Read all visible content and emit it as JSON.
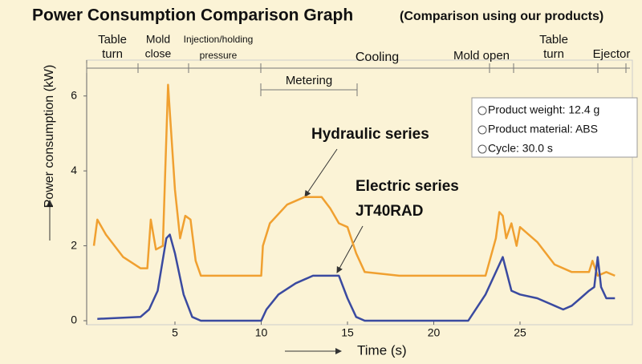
{
  "chart_data": {
    "type": "line",
    "title": "Power Consumption Comparison Graph",
    "subtitle": "(Comparison using our products)",
    "x_label": "Time (s)",
    "y_label": "Power consumption (kW)",
    "xlim": [
      0,
      31
    ],
    "ylim": [
      0,
      7
    ],
    "xticks": [
      5,
      10,
      15,
      20,
      25
    ],
    "yticks": [
      0,
      2,
      4,
      6
    ],
    "phases": [
      {
        "lines": [
          "Table",
          "turn"
        ]
      },
      {
        "lines": [
          "Mold",
          "close"
        ]
      },
      {
        "lines": [
          "Injection/holding",
          "pressure"
        ]
      },
      {
        "lines": [
          "Cooling"
        ]
      },
      {
        "lines": [
          "Metering"
        ]
      },
      {
        "lines": [
          "Mold open"
        ]
      },
      {
        "lines": [
          "Table",
          "turn"
        ]
      },
      {
        "lines": [
          "Ejector"
        ]
      }
    ],
    "info": [
      "Product weight: 12.4 g",
      "Product material: ABS",
      "Cycle: 30.0 s"
    ],
    "series": [
      {
        "name": "Hydraulic series",
        "color": "#f0a030",
        "x": [
          0.3,
          0.5,
          1,
          2,
          3,
          3.4,
          3.6,
          3.9,
          4.3,
          4.6,
          5,
          5.3,
          5.6,
          5.9,
          6.2,
          6.5,
          10,
          10.1,
          10.5,
          11.5,
          12.5,
          13.5,
          14,
          14.5,
          15,
          15.5,
          16,
          18,
          22,
          23,
          23.6,
          23.8,
          24,
          24.2,
          24.5,
          24.8,
          25,
          26,
          27,
          28,
          29,
          29.2,
          29.5,
          30,
          30.5
        ],
        "values": [
          2.0,
          2.7,
          2.3,
          1.7,
          1.4,
          1.4,
          2.7,
          1.9,
          2.0,
          6.3,
          3.5,
          2.2,
          2.8,
          2.7,
          1.6,
          1.2,
          1.2,
          2.0,
          2.6,
          3.1,
          3.3,
          3.3,
          3.0,
          2.6,
          2.5,
          1.8,
          1.3,
          1.2,
          1.2,
          1.2,
          2.2,
          2.9,
          2.8,
          2.2,
          2.6,
          2.0,
          2.5,
          2.1,
          1.5,
          1.3,
          1.3,
          1.6,
          1.2,
          1.3,
          1.2
        ]
      },
      {
        "name": "Electric series",
        "color": "#3a4aa0",
        "x": [
          0.5,
          3,
          3.5,
          4,
          4.5,
          4.7,
          5,
          5.5,
          6,
          6.5,
          10,
          10.3,
          11,
          12,
          13,
          14.5,
          15,
          15.5,
          16,
          22,
          23,
          23.5,
          24,
          24.5,
          25,
          26,
          27,
          27.5,
          28,
          28.5,
          29,
          29.3,
          29.5,
          29.7,
          30,
          30.5
        ],
        "values": [
          0.05,
          0.1,
          0.3,
          0.8,
          2.2,
          2.3,
          1.8,
          0.7,
          0.1,
          0,
          0,
          0.3,
          0.7,
          1.0,
          1.2,
          1.2,
          0.6,
          0.1,
          0,
          0,
          0.7,
          1.2,
          1.7,
          0.8,
          0.7,
          0.6,
          0.4,
          0.3,
          0.4,
          0.6,
          0.8,
          0.9,
          1.7,
          0.9,
          0.6,
          0.6
        ]
      }
    ],
    "model": "JT40RAD"
  }
}
